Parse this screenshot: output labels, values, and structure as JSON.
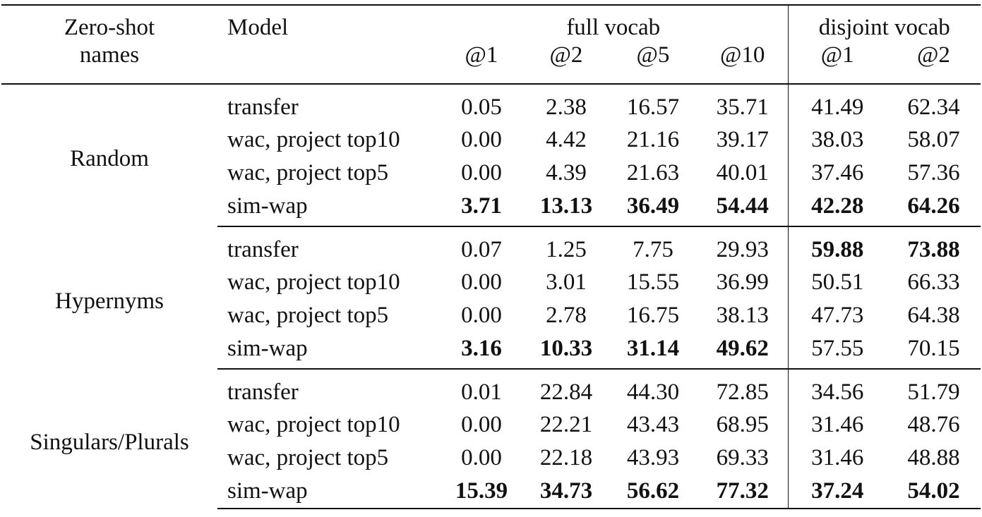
{
  "header": {
    "group_line1": "Zero-shot",
    "group_line2": "names",
    "model": "Model",
    "full_vocab": "full vocab",
    "disjoint_vocab": "disjoint vocab",
    "k_full": [
      "@1",
      "@2",
      "@5",
      "@10"
    ],
    "k_disjoint": [
      "@1",
      "@2"
    ]
  },
  "groups": [
    {
      "name": "Random",
      "rows": [
        {
          "model": "transfer",
          "full": [
            "0.05",
            "2.38",
            "16.57",
            "35.71"
          ],
          "disjoint": [
            "41.49",
            "62.34"
          ]
        },
        {
          "model": "wac, project top10",
          "full": [
            "0.00",
            "4.42",
            "21.16",
            "39.17"
          ],
          "disjoint": [
            "38.03",
            "58.07"
          ]
        },
        {
          "model": "wac, project top5",
          "full": [
            "0.00",
            "4.39",
            "21.63",
            "40.01"
          ],
          "disjoint": [
            "37.46",
            "57.36"
          ]
        },
        {
          "model": "sim-wap",
          "full": [
            "3.71",
            "13.13",
            "36.49",
            "54.44"
          ],
          "disjoint": [
            "42.28",
            "64.26"
          ]
        }
      ]
    },
    {
      "name": "Hypernyms",
      "rows": [
        {
          "model": "transfer",
          "full": [
            "0.07",
            "1.25",
            "7.75",
            "29.93"
          ],
          "disjoint": [
            "59.88",
            "73.88"
          ]
        },
        {
          "model": "wac, project top10",
          "full": [
            "0.00",
            "3.01",
            "15.55",
            "36.99"
          ],
          "disjoint": [
            "50.51",
            "66.33"
          ]
        },
        {
          "model": "wac, project top5",
          "full": [
            "0.00",
            "2.78",
            "16.75",
            "38.13"
          ],
          "disjoint": [
            "47.73",
            "64.38"
          ]
        },
        {
          "model": "sim-wap",
          "full": [
            "3.16",
            "10.33",
            "31.14",
            "49.62"
          ],
          "disjoint": [
            "57.55",
            "70.15"
          ]
        }
      ]
    },
    {
      "name": "Singulars/Plurals",
      "rows": [
        {
          "model": "transfer",
          "full": [
            "0.01",
            "22.84",
            "44.30",
            "72.85"
          ],
          "disjoint": [
            "34.56",
            "51.79"
          ]
        },
        {
          "model": "wac, project top10",
          "full": [
            "0.00",
            "22.21",
            "43.43",
            "68.95"
          ],
          "disjoint": [
            "31.46",
            "48.76"
          ]
        },
        {
          "model": "wac, project top5",
          "full": [
            "0.00",
            "22.18",
            "43.93",
            "69.33"
          ],
          "disjoint": [
            "31.46",
            "48.88"
          ]
        },
        {
          "model": "sim-wap",
          "full": [
            "15.39",
            "34.73",
            "56.62",
            "77.32"
          ],
          "disjoint": [
            "37.24",
            "54.02"
          ]
        }
      ]
    }
  ]
}
